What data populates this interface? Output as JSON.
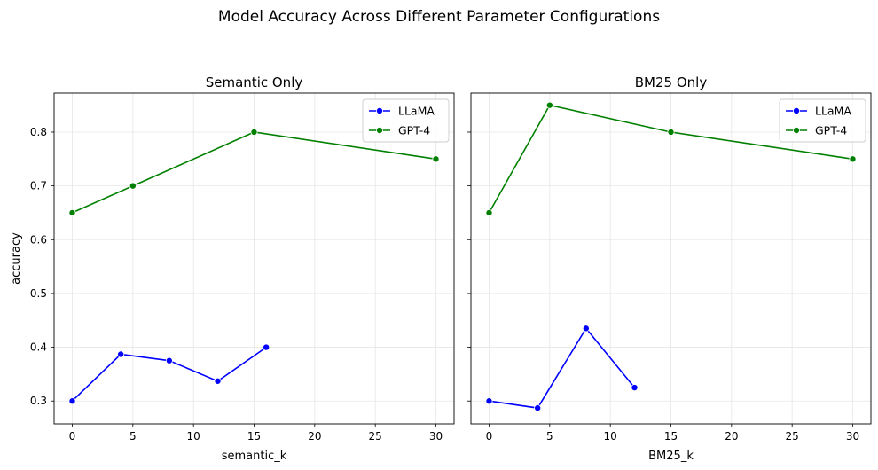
{
  "figure": {
    "suptitle": "Model Accuracy Across Different Parameter Configurations"
  },
  "colors": {
    "LLaMA": "#0000ff",
    "GPT-4": "#008000",
    "grid": "#e6e6e6",
    "axes": "#000000"
  },
  "chart_data": [
    {
      "type": "line",
      "title": "Semantic Only",
      "xlabel": "semantic_k",
      "ylabel": "accuracy",
      "xlim": [
        -1.5,
        31.5
      ],
      "ylim": [
        0.2575,
        0.8725
      ],
      "xticks": [
        0,
        5,
        10,
        15,
        20,
        25,
        30
      ],
      "yticks": [
        0.3,
        0.4,
        0.5,
        0.6,
        0.7,
        0.8
      ],
      "grid": true,
      "legend_position": "top-right",
      "series": [
        {
          "name": "LLaMA",
          "x": [
            0,
            4,
            8,
            12,
            16
          ],
          "y": [
            0.3,
            0.387,
            0.375,
            0.337,
            0.4
          ]
        },
        {
          "name": "GPT-4",
          "x": [
            0,
            5,
            15,
            30
          ],
          "y": [
            0.65,
            0.7,
            0.8,
            0.75
          ]
        }
      ]
    },
    {
      "type": "line",
      "title": "BM25 Only",
      "xlabel": "BM25_k",
      "ylabel": "",
      "xlim": [
        -1.5,
        31.5
      ],
      "ylim": [
        0.2575,
        0.8725
      ],
      "xticks": [
        0,
        5,
        10,
        15,
        20,
        25,
        30
      ],
      "yticks": [
        0.3,
        0.4,
        0.5,
        0.6,
        0.7,
        0.8
      ],
      "grid": true,
      "legend_position": "top-right",
      "series": [
        {
          "name": "LLaMA",
          "x": [
            0,
            4,
            8,
            12
          ],
          "y": [
            0.3,
            0.287,
            0.435,
            0.325
          ]
        },
        {
          "name": "GPT-4",
          "x": [
            0,
            5,
            15,
            30
          ],
          "y": [
            0.65,
            0.85,
            0.8,
            0.75
          ]
        }
      ]
    }
  ]
}
